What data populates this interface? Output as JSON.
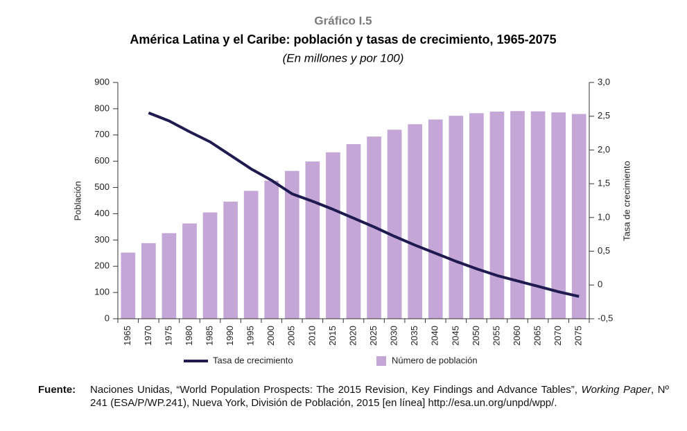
{
  "chart_data": {
    "type": "bar-line",
    "supertitle": "Gráfico I.5",
    "title": "América Latina y el Caribe: población y tasas de crecimiento, 1965-2075",
    "subtitle": "(En millones y por 100)",
    "y_label": "Población",
    "y2_label": "Tasa de crecimiento",
    "categories": [
      "1965",
      "1970",
      "1975",
      "1980",
      "1985",
      "1990",
      "1995",
      "2000",
      "2005",
      "2010",
      "2015",
      "2020",
      "2025",
      "2030",
      "2035",
      "2040",
      "2045",
      "2050",
      "2055",
      "2060",
      "2065",
      "2070",
      "2075"
    ],
    "series": [
      {
        "name": "Número de población",
        "type": "bar",
        "color": "#c4a7d6",
        "values": [
          252,
          288,
          326,
          363,
          405,
          446,
          487,
          526,
          563,
          599,
          634,
          665,
          694,
          720,
          741,
          759,
          773,
          783,
          789,
          791,
          790,
          786,
          780
        ]
      },
      {
        "name": "Tasa de crecimiento",
        "type": "line",
        "axis": "y2",
        "color": "#1f1a4f",
        "values": [
          null,
          2.55,
          2.43,
          2.27,
          2.12,
          1.92,
          1.72,
          1.55,
          1.35,
          1.24,
          1.12,
          0.99,
          0.86,
          0.72,
          0.59,
          0.47,
          0.35,
          0.24,
          0.14,
          0.06,
          -0.02,
          -0.1,
          -0.17
        ]
      }
    ],
    "ylim": [
      0,
      900
    ],
    "yticks": [
      0,
      100,
      200,
      300,
      400,
      500,
      600,
      700,
      800,
      900
    ],
    "y2lim": [
      -0.5,
      3.0
    ],
    "y2ticks": [
      {
        "value": -0.5,
        "label": "-0,5"
      },
      0,
      {
        "value": 0.5,
        "label": "0,5"
      },
      {
        "value": 1.0,
        "label": "1,0"
      },
      {
        "value": 1.5,
        "label": "1,5"
      },
      {
        "value": 2.0,
        "label": "2,0"
      },
      {
        "value": 2.5,
        "label": "2,5"
      },
      {
        "value": 3.0,
        "label": "3,0"
      }
    ],
    "grid": false
  },
  "source": {
    "label": "Fuente:",
    "text1": "Naciones Unidas, “World Population Prospects: The 2015 Revision, Key Findings and Advance Tables”, ",
    "italic": "Working Paper",
    "text2": ", Nº 241 (ESA/P/WP.241), Nueva York, División de Población, 2015 [en línea] http://esa.un.org/unpd/wpp/."
  }
}
